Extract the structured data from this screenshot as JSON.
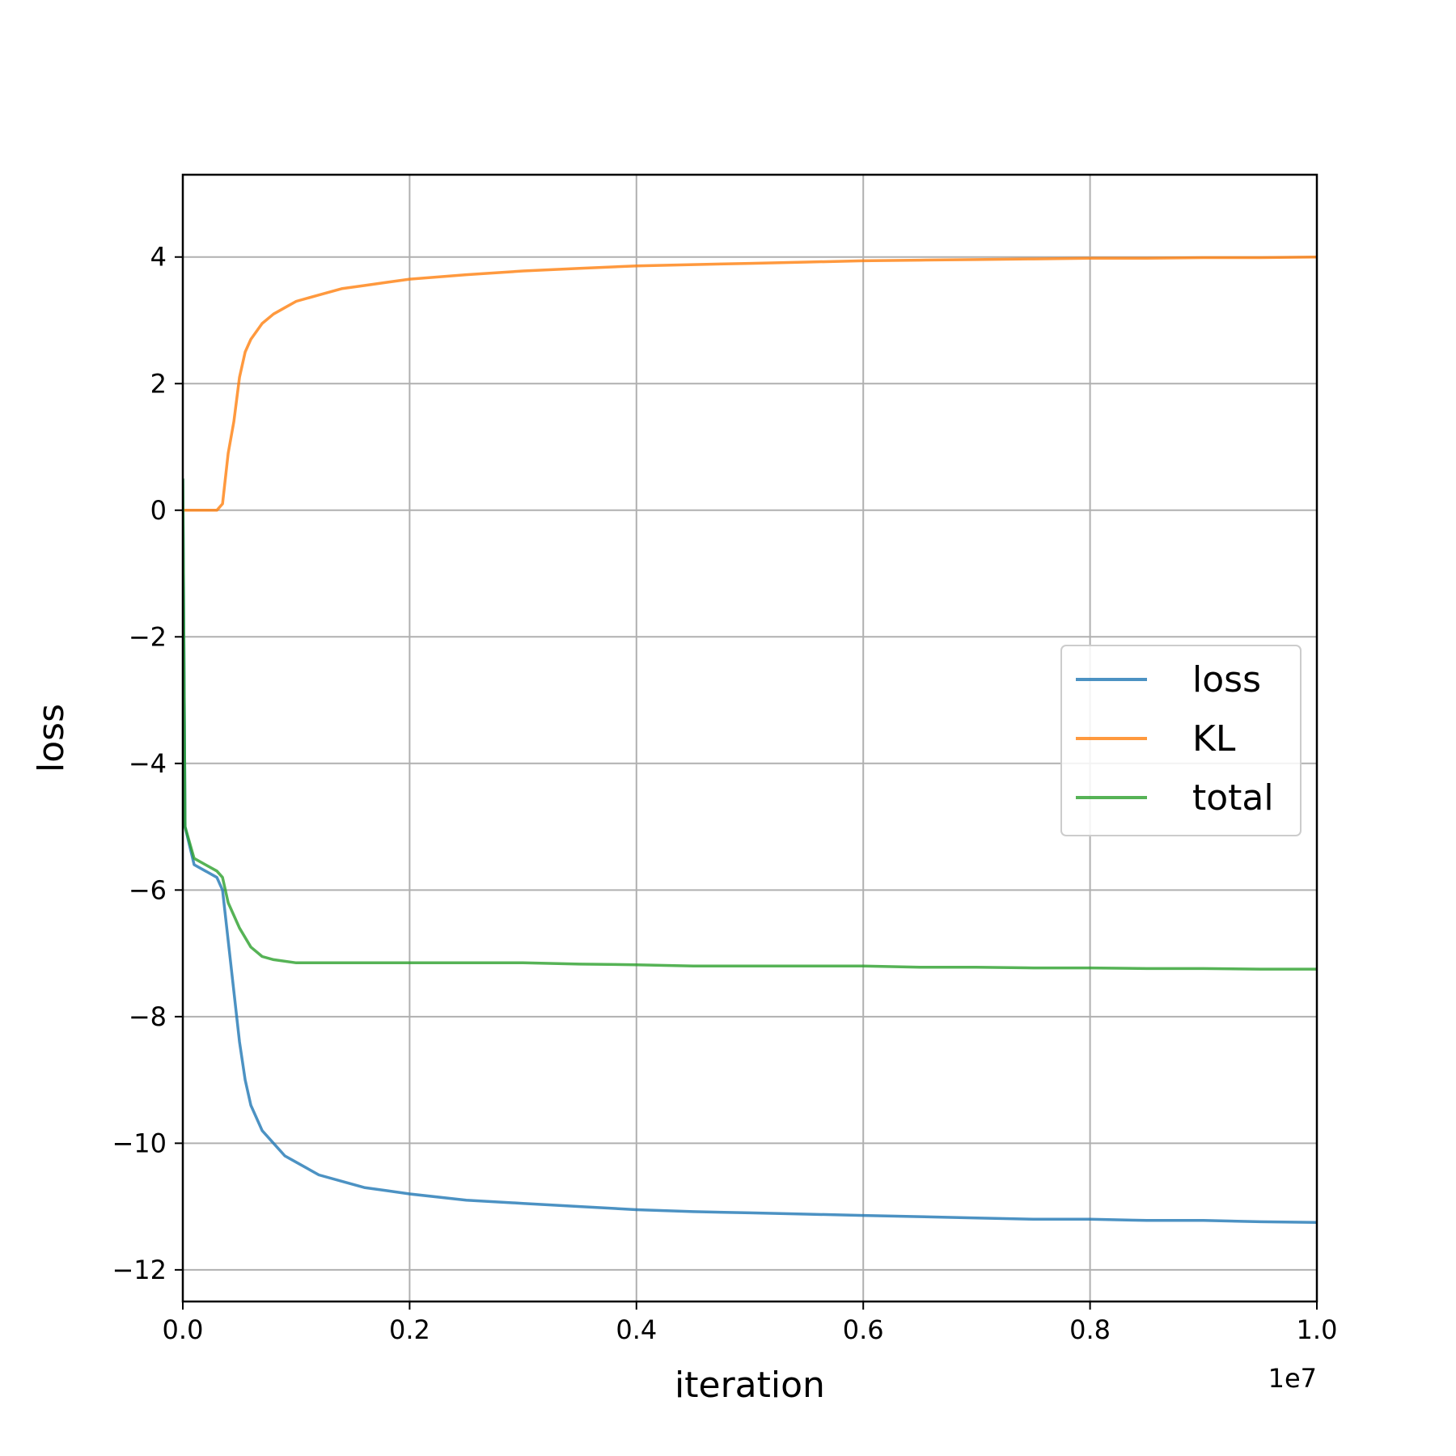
{
  "chart_data": {
    "type": "line",
    "xlabel": "iteration",
    "ylabel": "loss",
    "x_offset_label": "1e7",
    "xlim": [
      0,
      1.0
    ],
    "ylim": [
      -12.5,
      5.3
    ],
    "x_ticks": [
      0.0,
      0.2,
      0.4,
      0.6,
      0.8,
      1.0
    ],
    "x_tick_labels": [
      "0.0",
      "0.2",
      "0.4",
      "0.6",
      "0.8",
      "1.0"
    ],
    "y_ticks": [
      -12,
      -10,
      -8,
      -6,
      -4,
      -2,
      0,
      2,
      4
    ],
    "y_tick_labels": [
      "−12",
      "−10",
      "−8",
      "−6",
      "−4",
      "−2",
      "0",
      "2",
      "4"
    ],
    "grid": true,
    "legend_position": "center-right",
    "series": [
      {
        "name": "loss",
        "color": "#1f77b4",
        "x": [
          0,
          0.002,
          0.01,
          0.02,
          0.03,
          0.035,
          0.04,
          0.045,
          0.05,
          0.055,
          0.06,
          0.07,
          0.08,
          0.09,
          0.1,
          0.12,
          0.14,
          0.16,
          0.18,
          0.2,
          0.25,
          0.3,
          0.35,
          0.4,
          0.45,
          0.5,
          0.55,
          0.6,
          0.65,
          0.7,
          0.75,
          0.8,
          0.85,
          0.9,
          0.95,
          1.0
        ],
        "y": [
          0.5,
          -5.0,
          -5.6,
          -5.7,
          -5.8,
          -6.0,
          -6.8,
          -7.6,
          -8.4,
          -9.0,
          -9.4,
          -9.8,
          -10.0,
          -10.2,
          -10.3,
          -10.5,
          -10.6,
          -10.7,
          -10.75,
          -10.8,
          -10.9,
          -10.95,
          -11.0,
          -11.05,
          -11.08,
          -11.1,
          -11.12,
          -11.14,
          -11.16,
          -11.18,
          -11.2,
          -11.2,
          -11.22,
          -11.22,
          -11.24,
          -11.25
        ]
      },
      {
        "name": "KL",
        "color": "#ff7f0e",
        "x": [
          0,
          0.01,
          0.02,
          0.03,
          0.035,
          0.04,
          0.045,
          0.05,
          0.055,
          0.06,
          0.07,
          0.08,
          0.09,
          0.1,
          0.12,
          0.14,
          0.16,
          0.18,
          0.2,
          0.25,
          0.3,
          0.35,
          0.4,
          0.45,
          0.5,
          0.55,
          0.6,
          0.65,
          0.7,
          0.75,
          0.8,
          0.85,
          0.9,
          0.95,
          1.0
        ],
        "y": [
          0,
          0,
          0,
          0,
          0.1,
          0.9,
          1.4,
          2.1,
          2.5,
          2.7,
          2.95,
          3.1,
          3.2,
          3.3,
          3.4,
          3.5,
          3.55,
          3.6,
          3.65,
          3.72,
          3.78,
          3.82,
          3.86,
          3.88,
          3.9,
          3.92,
          3.94,
          3.95,
          3.96,
          3.97,
          3.98,
          3.98,
          3.99,
          3.99,
          4.0
        ]
      },
      {
        "name": "total",
        "color": "#2ca02c",
        "x": [
          0,
          0.002,
          0.01,
          0.02,
          0.03,
          0.035,
          0.04,
          0.05,
          0.06,
          0.07,
          0.08,
          0.1,
          0.12,
          0.15,
          0.2,
          0.25,
          0.3,
          0.35,
          0.4,
          0.45,
          0.5,
          0.55,
          0.6,
          0.65,
          0.7,
          0.75,
          0.8,
          0.85,
          0.9,
          0.95,
          1.0
        ],
        "y": [
          0.5,
          -5.0,
          -5.5,
          -5.6,
          -5.7,
          -5.8,
          -6.2,
          -6.6,
          -6.9,
          -7.05,
          -7.1,
          -7.15,
          -7.15,
          -7.15,
          -7.15,
          -7.15,
          -7.15,
          -7.17,
          -7.18,
          -7.2,
          -7.2,
          -7.2,
          -7.2,
          -7.22,
          -7.22,
          -7.23,
          -7.23,
          -7.24,
          -7.24,
          -7.25,
          -7.25
        ]
      }
    ]
  }
}
